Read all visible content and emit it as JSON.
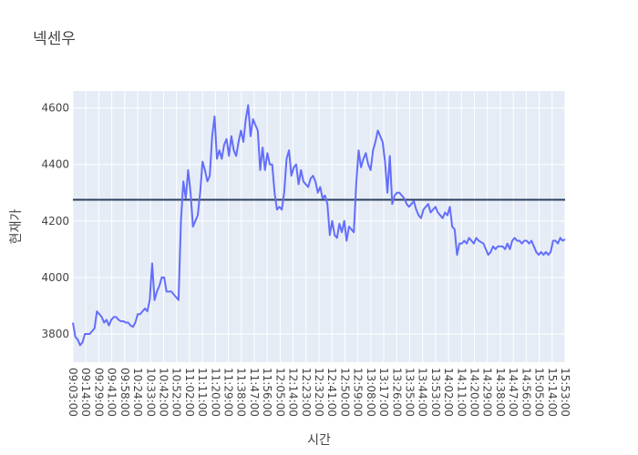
{
  "chart_data": {
    "type": "line",
    "title": "넥센우",
    "xlabel": "시간",
    "ylabel": "현재가",
    "ylim": [
      3700,
      4660
    ],
    "yticks": [
      3800,
      4000,
      4200,
      4400,
      4600
    ],
    "xticks": [
      "09:03:00",
      "09:14:00",
      "09:29:00",
      "09:41:00",
      "09:58:00",
      "10:24:00",
      "10:33:00",
      "10:42:00",
      "10:52:00",
      "11:02:00",
      "11:11:00",
      "11:20:00",
      "11:29:00",
      "11:38:00",
      "11:47:00",
      "11:56:00",
      "12:05:00",
      "12:14:00",
      "12:23:00",
      "12:32:00",
      "12:41:00",
      "12:50:00",
      "12:59:00",
      "13:08:00",
      "13:17:00",
      "13:26:00",
      "13:35:00",
      "13:44:00",
      "13:53:00",
      "14:02:00",
      "14:11:00",
      "14:20:00",
      "14:29:00",
      "14:38:00",
      "14:47:00",
      "14:56:00",
      "15:05:00",
      "15:14:00",
      "15:53:00"
    ],
    "reference_line": 4275,
    "line_color": "#636efa",
    "reference_color": "#2a3f5f",
    "series": [
      {
        "values": [
          3840,
          3790,
          3780,
          3760,
          3770,
          3800,
          3800,
          3800,
          3810,
          3820,
          3880,
          3870,
          3860,
          3840,
          3850,
          3830,
          3850,
          3860,
          3860,
          3850,
          3845,
          3845,
          3840,
          3840,
          3830,
          3825,
          3840,
          3870,
          3870,
          3880,
          3890,
          3880,
          3920,
          4050,
          3920,
          3950,
          3970,
          4000,
          4000,
          3950,
          3950,
          3950,
          3940,
          3930,
          3920,
          4200,
          4340,
          4280,
          4380,
          4300,
          4180,
          4200,
          4220,
          4300,
          4410,
          4380,
          4340,
          4360,
          4500,
          4570,
          4420,
          4450,
          4420,
          4470,
          4490,
          4430,
          4500,
          4450,
          4430,
          4480,
          4520,
          4480,
          4560,
          4610,
          4500,
          4560,
          4540,
          4520,
          4380,
          4460,
          4380,
          4440,
          4400,
          4400,
          4300,
          4240,
          4250,
          4240,
          4300,
          4420,
          4450,
          4360,
          4390,
          4400,
          4330,
          4380,
          4340,
          4330,
          4320,
          4350,
          4360,
          4340,
          4300,
          4320,
          4280,
          4290,
          4260,
          4150,
          4200,
          4150,
          4140,
          4190,
          4160,
          4200,
          4130,
          4180,
          4170,
          4160,
          4330,
          4450,
          4390,
          4420,
          4440,
          4400,
          4380,
          4450,
          4480,
          4520,
          4500,
          4480,
          4410,
          4300,
          4430,
          4260,
          4290,
          4300,
          4300,
          4290,
          4280,
          4260,
          4250,
          4260,
          4270,
          4240,
          4220,
          4210,
          4240,
          4250,
          4260,
          4230,
          4240,
          4250,
          4230,
          4220,
          4210,
          4230,
          4220,
          4250,
          4180,
          4170,
          4080,
          4120,
          4120,
          4130,
          4120,
          4140,
          4130,
          4120,
          4140,
          4130,
          4125,
          4120,
          4100,
          4080,
          4090,
          4110,
          4100,
          4110,
          4110,
          4110,
          4100,
          4120,
          4100,
          4130,
          4140,
          4130,
          4130,
          4120,
          4130,
          4130,
          4120,
          4130,
          4110,
          4090,
          4080,
          4090,
          4080,
          4090,
          4080,
          4090,
          4130,
          4130,
          4120,
          4140,
          4130,
          4135
        ]
      }
    ]
  }
}
